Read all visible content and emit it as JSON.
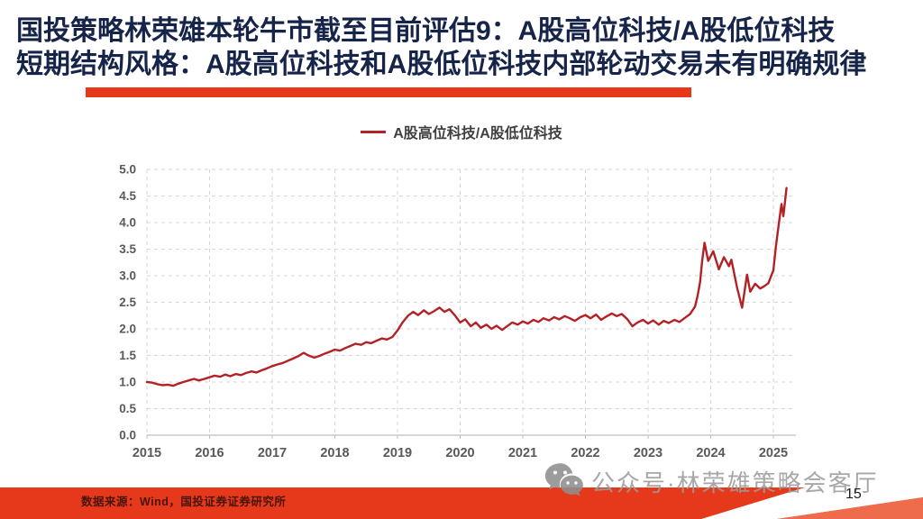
{
  "slide": {
    "title_line1": "国投策略林荣雄本轮牛市截至目前评估9：A股高位科技/A股低位科技",
    "title_line2": "短期结构风格：A股高位科技和A股低位科技内部轮动交易未有明确规律",
    "title_color": "#16244a",
    "accent_color": "#e6391b",
    "footer_band_light_color": "#ee6c4c",
    "source_note": "数据来源：Wind，国投证券证券研究所",
    "watermark_text": "公众号·林荣雄策略会客厅",
    "page_number": "15"
  },
  "chart_data": {
    "type": "line",
    "title": "",
    "legend": [
      "A股高位科技/A股低位科技"
    ],
    "legend_position": "top-center",
    "line_color": "#b42125",
    "grid": "dashed",
    "grid_color": "#d6d6d6",
    "axis_color": "#bfbfbf",
    "tick_label_color": "#595959",
    "xlabel": "",
    "ylabel": "",
    "xlim": [
      2015,
      2025.36
    ],
    "ylim": [
      0.0,
      5.0
    ],
    "xticks": [
      2015,
      2016,
      2017,
      2018,
      2019,
      2020,
      2021,
      2022,
      2023,
      2024,
      2025
    ],
    "xtick_labels": [
      "2015",
      "2016",
      "2017",
      "2018",
      "2019",
      "2020",
      "2021",
      "2022",
      "2023",
      "2024",
      "2025"
    ],
    "yticks": [
      0.0,
      0.5,
      1.0,
      1.5,
      2.0,
      2.5,
      3.0,
      3.5,
      4.0,
      4.5,
      5.0
    ],
    "ytick_labels": [
      "0.0",
      "0.5",
      "1.0",
      "1.5",
      "2.0",
      "2.5",
      "3.0",
      "3.5",
      "4.0",
      "4.5",
      "5.0"
    ],
    "series": [
      {
        "name": "A股高位科技/A股低位科技",
        "points": [
          [
            2015.0,
            1.0
          ],
          [
            2015.08,
            0.99
          ],
          [
            2015.17,
            0.96
          ],
          [
            2015.25,
            0.94
          ],
          [
            2015.33,
            0.95
          ],
          [
            2015.42,
            0.93
          ],
          [
            2015.5,
            0.97
          ],
          [
            2015.58,
            1.0
          ],
          [
            2015.67,
            1.03
          ],
          [
            2015.75,
            1.06
          ],
          [
            2015.83,
            1.03
          ],
          [
            2015.92,
            1.06
          ],
          [
            2016.0,
            1.09
          ],
          [
            2016.08,
            1.12
          ],
          [
            2016.17,
            1.1
          ],
          [
            2016.25,
            1.14
          ],
          [
            2016.33,
            1.11
          ],
          [
            2016.42,
            1.15
          ],
          [
            2016.5,
            1.13
          ],
          [
            2016.58,
            1.17
          ],
          [
            2016.67,
            1.2
          ],
          [
            2016.75,
            1.18
          ],
          [
            2016.83,
            1.22
          ],
          [
            2016.92,
            1.26
          ],
          [
            2017.0,
            1.3
          ],
          [
            2017.08,
            1.33
          ],
          [
            2017.17,
            1.36
          ],
          [
            2017.25,
            1.4
          ],
          [
            2017.33,
            1.44
          ],
          [
            2017.42,
            1.49
          ],
          [
            2017.5,
            1.55
          ],
          [
            2017.58,
            1.5
          ],
          [
            2017.67,
            1.46
          ],
          [
            2017.75,
            1.49
          ],
          [
            2017.83,
            1.53
          ],
          [
            2017.92,
            1.57
          ],
          [
            2018.0,
            1.61
          ],
          [
            2018.08,
            1.59
          ],
          [
            2018.17,
            1.64
          ],
          [
            2018.25,
            1.68
          ],
          [
            2018.33,
            1.72
          ],
          [
            2018.42,
            1.7
          ],
          [
            2018.5,
            1.75
          ],
          [
            2018.58,
            1.73
          ],
          [
            2018.67,
            1.78
          ],
          [
            2018.75,
            1.82
          ],
          [
            2018.83,
            1.8
          ],
          [
            2018.92,
            1.85
          ],
          [
            2019.0,
            1.97
          ],
          [
            2019.08,
            2.12
          ],
          [
            2019.17,
            2.25
          ],
          [
            2019.25,
            2.32
          ],
          [
            2019.33,
            2.26
          ],
          [
            2019.42,
            2.35
          ],
          [
            2019.5,
            2.28
          ],
          [
            2019.58,
            2.33
          ],
          [
            2019.67,
            2.4
          ],
          [
            2019.75,
            2.32
          ],
          [
            2019.83,
            2.37
          ],
          [
            2019.92,
            2.25
          ],
          [
            2020.0,
            2.12
          ],
          [
            2020.08,
            2.18
          ],
          [
            2020.17,
            2.05
          ],
          [
            2020.25,
            2.12
          ],
          [
            2020.33,
            2.02
          ],
          [
            2020.42,
            2.08
          ],
          [
            2020.5,
            2.0
          ],
          [
            2020.58,
            2.06
          ],
          [
            2020.67,
            1.98
          ],
          [
            2020.75,
            2.05
          ],
          [
            2020.83,
            2.12
          ],
          [
            2020.92,
            2.08
          ],
          [
            2021.0,
            2.14
          ],
          [
            2021.08,
            2.1
          ],
          [
            2021.17,
            2.17
          ],
          [
            2021.25,
            2.13
          ],
          [
            2021.33,
            2.2
          ],
          [
            2021.42,
            2.16
          ],
          [
            2021.5,
            2.22
          ],
          [
            2021.58,
            2.18
          ],
          [
            2021.67,
            2.24
          ],
          [
            2021.75,
            2.2
          ],
          [
            2021.83,
            2.15
          ],
          [
            2021.92,
            2.22
          ],
          [
            2022.0,
            2.26
          ],
          [
            2022.08,
            2.2
          ],
          [
            2022.17,
            2.27
          ],
          [
            2022.25,
            2.17
          ],
          [
            2022.33,
            2.23
          ],
          [
            2022.42,
            2.29
          ],
          [
            2022.5,
            2.24
          ],
          [
            2022.58,
            2.28
          ],
          [
            2022.67,
            2.18
          ],
          [
            2022.75,
            2.05
          ],
          [
            2022.83,
            2.12
          ],
          [
            2022.92,
            2.17
          ],
          [
            2023.0,
            2.1
          ],
          [
            2023.08,
            2.16
          ],
          [
            2023.17,
            2.08
          ],
          [
            2023.25,
            2.15
          ],
          [
            2023.33,
            2.11
          ],
          [
            2023.42,
            2.17
          ],
          [
            2023.5,
            2.13
          ],
          [
            2023.58,
            2.2
          ],
          [
            2023.67,
            2.28
          ],
          [
            2023.75,
            2.42
          ],
          [
            2023.79,
            2.62
          ],
          [
            2023.83,
            2.88
          ],
          [
            2023.86,
            3.25
          ],
          [
            2023.9,
            3.62
          ],
          [
            2023.96,
            3.28
          ],
          [
            2024.04,
            3.46
          ],
          [
            2024.13,
            3.12
          ],
          [
            2024.21,
            3.35
          ],
          [
            2024.29,
            3.18
          ],
          [
            2024.33,
            3.3
          ],
          [
            2024.42,
            2.78
          ],
          [
            2024.5,
            2.4
          ],
          [
            2024.58,
            3.02
          ],
          [
            2024.63,
            2.7
          ],
          [
            2024.71,
            2.85
          ],
          [
            2024.79,
            2.76
          ],
          [
            2024.85,
            2.8
          ],
          [
            2024.92,
            2.86
          ],
          [
            2025.0,
            3.1
          ],
          [
            2025.04,
            3.55
          ],
          [
            2025.08,
            3.92
          ],
          [
            2025.13,
            4.35
          ],
          [
            2025.16,
            4.12
          ],
          [
            2025.21,
            4.65
          ]
        ]
      }
    ]
  }
}
